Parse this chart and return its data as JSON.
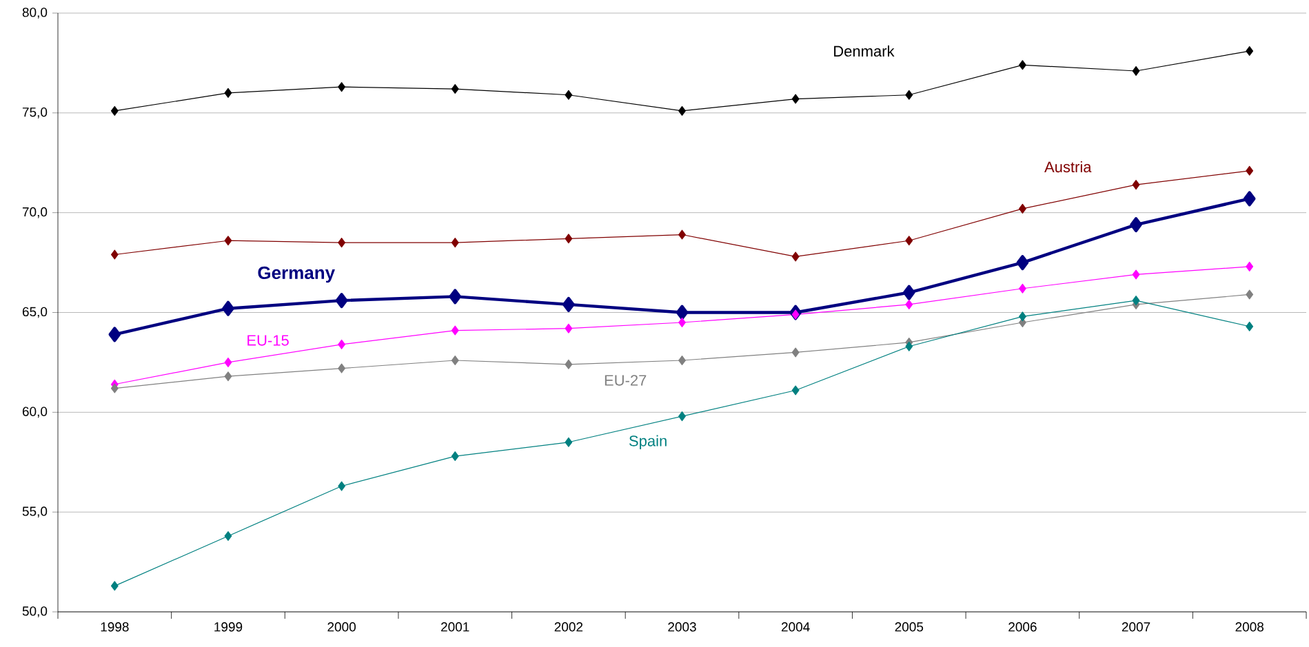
{
  "chart_data": {
    "type": "line",
    "categories": [
      "1998",
      "1999",
      "2000",
      "2001",
      "2002",
      "2003",
      "2004",
      "2005",
      "2006",
      "2007",
      "2008"
    ],
    "series": [
      {
        "name": "Denmark",
        "color": "#000000",
        "values": [
          75.1,
          76.0,
          76.3,
          76.2,
          75.9,
          75.1,
          75.7,
          75.9,
          77.4,
          77.1,
          78.1
        ]
      },
      {
        "name": "Austria",
        "color": "#800000",
        "values": [
          67.9,
          68.6,
          68.5,
          68.5,
          68.7,
          68.9,
          67.8,
          68.6,
          70.2,
          71.4,
          72.1
        ]
      },
      {
        "name": "Germany",
        "color": "#000080",
        "values": [
          63.9,
          65.2,
          65.6,
          65.8,
          65.4,
          65.0,
          65.0,
          66.0,
          67.5,
          69.4,
          70.7
        ]
      },
      {
        "name": "EU-15",
        "color": "#ff00ff",
        "values": [
          61.4,
          62.5,
          63.4,
          64.1,
          64.2,
          64.5,
          64.9,
          65.4,
          66.2,
          66.9,
          67.3
        ]
      },
      {
        "name": "EU-27",
        "color": "#808080",
        "values": [
          61.2,
          61.8,
          62.2,
          62.6,
          62.4,
          62.6,
          63.0,
          63.5,
          64.5,
          65.4,
          65.9
        ]
      },
      {
        "name": "Spain",
        "color": "#008080",
        "values": [
          51.3,
          53.8,
          56.3,
          57.8,
          58.5,
          59.8,
          61.1,
          63.3,
          64.8,
          65.6,
          64.3
        ]
      }
    ],
    "ylim": [
      50,
      80
    ],
    "yticks": [
      {
        "value": 50,
        "label": "50,0"
      },
      {
        "value": 55,
        "label": "55,0"
      },
      {
        "value": 60,
        "label": "60,0"
      },
      {
        "value": 65,
        "label": "65,0"
      },
      {
        "value": 70,
        "label": "70,0"
      },
      {
        "value": 75,
        "label": "75,0"
      },
      {
        "value": 80,
        "label": "80,0"
      }
    ],
    "grid": "y",
    "marker": "diamond",
    "line_style": "solid"
  }
}
